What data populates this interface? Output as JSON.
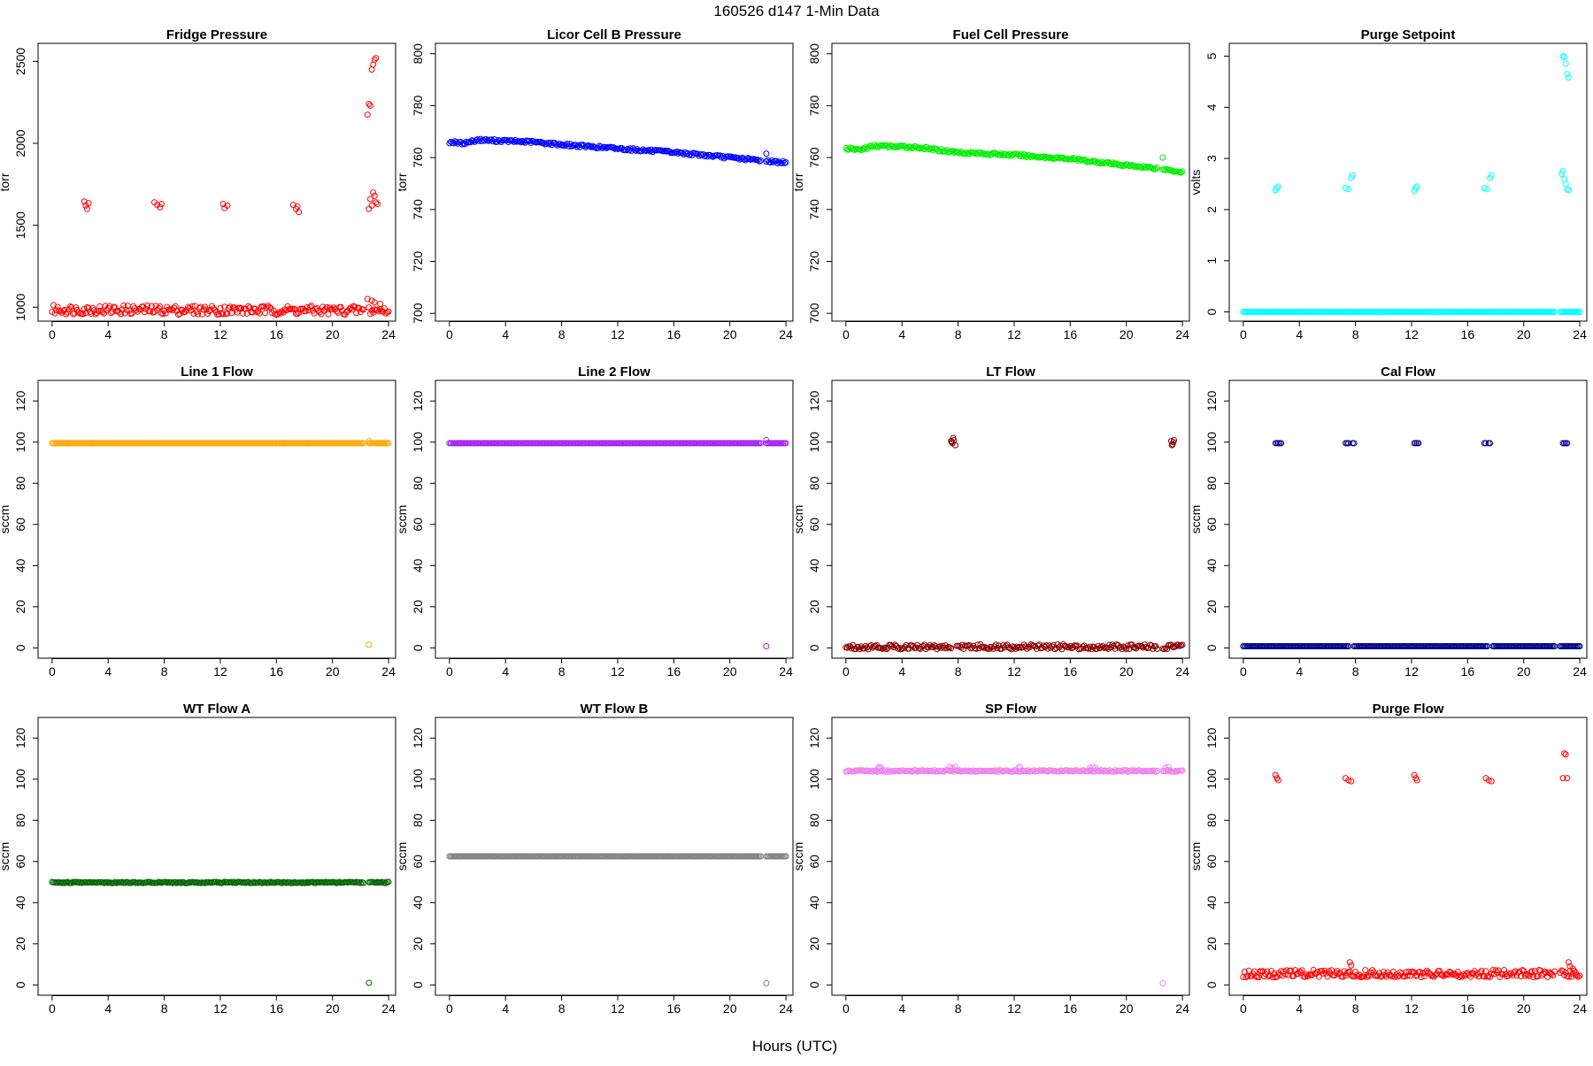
{
  "figure": {
    "title": "160526    d147    1-Min Data",
    "xlabel": "Hours (UTC)"
  },
  "chart_data": [
    {
      "type": "scatter",
      "title": "Fridge Pressure",
      "ylabel": "torr",
      "color": "#ff0000",
      "xlim": [
        -1,
        24.5
      ],
      "ylim": [
        915,
        2610
      ],
      "xticks": [
        0,
        4,
        8,
        12,
        16,
        20,
        24
      ],
      "yticks": [
        1000,
        1500,
        2000,
        2500
      ],
      "baseline": {
        "x_start": 0,
        "x_end": 24,
        "y_start": 985,
        "y_end": 980,
        "jitter": 28,
        "gaps": [
          [
            22.3,
            22.5
          ]
        ]
      },
      "points": [
        [
          2.3,
          1645
        ],
        [
          2.4,
          1620
        ],
        [
          2.5,
          1600
        ],
        [
          2.6,
          1635
        ],
        [
          7.3,
          1640
        ],
        [
          7.5,
          1625
        ],
        [
          7.7,
          1610
        ],
        [
          7.8,
          1630
        ],
        [
          12.2,
          1630
        ],
        [
          12.3,
          1605
        ],
        [
          12.5,
          1620
        ],
        [
          17.2,
          1625
        ],
        [
          17.4,
          1600
        ],
        [
          17.6,
          1580
        ],
        [
          17.5,
          1615
        ],
        [
          22.6,
          2240
        ],
        [
          22.7,
          2230
        ],
        [
          22.5,
          2175
        ],
        [
          22.8,
          2450
        ],
        [
          22.9,
          2480
        ],
        [
          23.0,
          2510
        ],
        [
          23.1,
          2520
        ],
        [
          22.9,
          1700
        ],
        [
          23.0,
          1680
        ],
        [
          22.7,
          1660
        ],
        [
          22.8,
          1620
        ],
        [
          23.1,
          1640
        ],
        [
          23.2,
          1630
        ],
        [
          22.6,
          1600
        ],
        [
          22.5,
          1050
        ],
        [
          22.8,
          1040
        ],
        [
          23.0,
          1030
        ],
        [
          23.4,
          1020
        ]
      ]
    },
    {
      "type": "scatter",
      "title": "Licor Cell B Pressure",
      "ylabel": "torr",
      "color": "#0000ff",
      "xlim": [
        -1,
        24.5
      ],
      "ylim": [
        697,
        804
      ],
      "xticks": [
        0,
        4,
        8,
        12,
        16,
        20,
        24
      ],
      "yticks": [
        700,
        720,
        740,
        760,
        780,
        800
      ],
      "trend": [
        [
          0,
          766
        ],
        [
          1,
          765.5
        ],
        [
          2,
          766.8
        ],
        [
          6,
          766
        ],
        [
          8,
          765
        ],
        [
          12,
          763.5
        ],
        [
          16,
          762
        ],
        [
          20,
          760
        ],
        [
          22,
          759
        ],
        [
          24,
          758
        ]
      ],
      "trend_jitter": 0.5,
      "baseline": {
        "gaps": [
          [
            22.3,
            22.5
          ]
        ]
      },
      "points": [
        [
          22.6,
          761.5
        ]
      ]
    },
    {
      "type": "scatter",
      "title": "Fuel Cell Pressure",
      "ylabel": "torr",
      "color": "#00ee00",
      "xlim": [
        -1,
        24.5
      ],
      "ylim": [
        697,
        804
      ],
      "xticks": [
        0,
        4,
        8,
        12,
        16,
        20,
        24
      ],
      "yticks": [
        700,
        720,
        740,
        760,
        780,
        800
      ],
      "trend": [
        [
          0,
          763.5
        ],
        [
          1,
          763
        ],
        [
          2,
          764.5
        ],
        [
          5,
          764
        ],
        [
          8,
          762
        ],
        [
          12,
          761
        ],
        [
          16,
          759.5
        ],
        [
          20,
          757
        ],
        [
          22,
          756
        ],
        [
          24,
          754.5
        ]
      ],
      "trend_jitter": 0.5,
      "baseline": {
        "gaps": [
          [
            22.3,
            22.5
          ]
        ]
      },
      "points": [
        [
          22.6,
          760
        ]
      ]
    },
    {
      "type": "scatter",
      "title": "Purge Setpoint",
      "ylabel": "volts",
      "color": "#00ffff",
      "xlim": [
        -1,
        24.5
      ],
      "ylim": [
        -0.18,
        5.25
      ],
      "xticks": [
        0,
        4,
        8,
        12,
        16,
        20,
        24
      ],
      "yticks": [
        0,
        1,
        2,
        3,
        4,
        5
      ],
      "baseline": {
        "x_start": 0,
        "x_end": 24,
        "y_start": 0,
        "y_end": 0,
        "jitter": 0,
        "gaps": [
          [
            22.3,
            22.5
          ]
        ]
      },
      "points": [
        [
          2.3,
          2.38
        ],
        [
          2.4,
          2.42
        ],
        [
          2.5,
          2.45
        ],
        [
          7.3,
          2.42
        ],
        [
          7.5,
          2.4
        ],
        [
          7.7,
          2.62
        ],
        [
          7.8,
          2.67
        ],
        [
          12.2,
          2.37
        ],
        [
          12.3,
          2.42
        ],
        [
          12.4,
          2.45
        ],
        [
          17.2,
          2.42
        ],
        [
          17.4,
          2.4
        ],
        [
          17.6,
          2.62
        ],
        [
          17.7,
          2.67
        ],
        [
          22.7,
          2.7
        ],
        [
          22.8,
          2.75
        ],
        [
          22.9,
          2.6
        ],
        [
          23.0,
          2.5
        ],
        [
          23.1,
          2.4
        ],
        [
          23.2,
          2.38
        ],
        [
          22.8,
          5.0
        ],
        [
          22.9,
          4.98
        ],
        [
          23.0,
          4.85
        ],
        [
          23.1,
          4.65
        ],
        [
          23.2,
          4.58
        ]
      ]
    },
    {
      "type": "scatter",
      "title": "Line 1 Flow",
      "ylabel": "sccm",
      "color": "#ffa500",
      "xlim": [
        -1,
        24.5
      ],
      "ylim": [
        -5,
        130
      ],
      "xticks": [
        0,
        4,
        8,
        12,
        16,
        20,
        24
      ],
      "yticks": [
        0,
        20,
        40,
        60,
        80,
        100,
        120
      ],
      "baseline": {
        "x_start": 0,
        "x_end": 24,
        "y_start": 99.5,
        "y_end": 99.5,
        "jitter": 0,
        "gaps": [
          [
            22.3,
            22.5
          ]
        ]
      },
      "points": [
        [
          22.6,
          1.5
        ],
        [
          22.6,
          100.5
        ]
      ]
    },
    {
      "type": "scatter",
      "title": "Line 2 Flow",
      "ylabel": "sccm",
      "color": "#a020f0",
      "xlim": [
        -1,
        24.5
      ],
      "ylim": [
        -5,
        130
      ],
      "xticks": [
        0,
        4,
        8,
        12,
        16,
        20,
        24
      ],
      "yticks": [
        0,
        20,
        40,
        60,
        80,
        100,
        120
      ],
      "baseline": {
        "x_start": 0,
        "x_end": 24,
        "y_start": 99.5,
        "y_end": 99.5,
        "jitter": 0,
        "gaps": [
          [
            22.3,
            22.5
          ]
        ]
      },
      "points": [
        [
          22.6,
          0.8
        ],
        [
          22.6,
          101
        ]
      ]
    },
    {
      "type": "scatter",
      "title": "LT Flow",
      "ylabel": "sccm",
      "color": "#8b0000",
      "xlim": [
        -1,
        24.5
      ],
      "ylim": [
        -5,
        130
      ],
      "xticks": [
        0,
        4,
        8,
        12,
        16,
        20,
        24
      ],
      "yticks": [
        0,
        20,
        40,
        60,
        80,
        100,
        120
      ],
      "baseline": {
        "x_start": 0,
        "x_end": 24,
        "y_start": 0.5,
        "y_end": 0.5,
        "jitter": 1.2,
        "gaps": [
          [
            7.6,
            7.8
          ],
          [
            22.3,
            22.5
          ]
        ]
      },
      "points": [
        [
          7.5,
          100.5
        ],
        [
          7.6,
          99.5
        ],
        [
          7.7,
          101
        ],
        [
          7.8,
          98.5
        ],
        [
          7.55,
          100
        ],
        [
          7.65,
          102
        ],
        [
          23.2,
          100.5
        ],
        [
          23.3,
          99
        ],
        [
          23.4,
          101
        ],
        [
          23.25,
          98.5
        ],
        [
          23.35,
          100
        ]
      ]
    },
    {
      "type": "scatter",
      "title": "Cal Flow",
      "ylabel": "sccm",
      "color": "#00008b",
      "xlim": [
        -1,
        24.5
      ],
      "ylim": [
        -5,
        130
      ],
      "xticks": [
        0,
        4,
        8,
        12,
        16,
        20,
        24
      ],
      "yticks": [
        0,
        20,
        40,
        60,
        80,
        100,
        120
      ],
      "baseline": {
        "x_start": 0,
        "x_end": 24,
        "y_start": 0.8,
        "y_end": 0.8,
        "jitter": 0,
        "gaps": [
          [
            7.6,
            7.8
          ],
          [
            17.5,
            17.7
          ],
          [
            22.3,
            22.5
          ]
        ]
      },
      "points": [
        [
          2.3,
          99.5
        ],
        [
          2.4,
          99.5
        ],
        [
          2.5,
          99.5
        ],
        [
          2.6,
          99.5
        ],
        [
          2.7,
          99.5
        ],
        [
          7.3,
          99.5
        ],
        [
          7.4,
          99.5
        ],
        [
          7.5,
          99.5
        ],
        [
          7.8,
          99.5
        ],
        [
          7.9,
          99.5
        ],
        [
          12.2,
          99.5
        ],
        [
          12.3,
          99.5
        ],
        [
          12.4,
          99.5
        ],
        [
          12.5,
          99.5
        ],
        [
          17.2,
          99.5
        ],
        [
          17.3,
          99.5
        ],
        [
          17.5,
          99.5
        ],
        [
          17.6,
          99.5
        ],
        [
          22.8,
          99.5
        ],
        [
          22.9,
          99.5
        ],
        [
          23.0,
          99.5
        ],
        [
          23.1,
          99.5
        ]
      ]
    },
    {
      "type": "scatter",
      "title": "WT Flow A",
      "ylabel": "sccm",
      "color": "#006400",
      "xlim": [
        -1,
        24.5
      ],
      "ylim": [
        -5,
        130
      ],
      "xticks": [
        0,
        4,
        8,
        12,
        16,
        20,
        24
      ],
      "yticks": [
        0,
        20,
        40,
        60,
        80,
        100,
        120
      ],
      "baseline": {
        "x_start": 0,
        "x_end": 24,
        "y_start": 49.8,
        "y_end": 49.8,
        "jitter": 0.3,
        "gaps": [
          [
            22.3,
            22.5
          ]
        ]
      },
      "points": [
        [
          22.6,
          1
        ]
      ]
    },
    {
      "type": "scatter",
      "title": "WT Flow B",
      "ylabel": "sccm",
      "color": "#808080",
      "xlim": [
        -1,
        24.5
      ],
      "ylim": [
        -5,
        130
      ],
      "xticks": [
        0,
        4,
        8,
        12,
        16,
        20,
        24
      ],
      "yticks": [
        0,
        20,
        40,
        60,
        80,
        100,
        120
      ],
      "baseline": {
        "x_start": 0,
        "x_end": 24,
        "y_start": 62.5,
        "y_end": 62.5,
        "jitter": 0,
        "gaps": [
          [
            22.3,
            22.5
          ]
        ]
      },
      "points": [
        [
          22.6,
          0.8
        ]
      ]
    },
    {
      "type": "scatter",
      "title": "SP Flow",
      "ylabel": "sccm",
      "color": "#ee82ee",
      "xlim": [
        -1,
        24.5
      ],
      "ylim": [
        -5,
        130
      ],
      "xticks": [
        0,
        4,
        8,
        12,
        16,
        20,
        24
      ],
      "yticks": [
        0,
        20,
        40,
        60,
        80,
        100,
        120
      ],
      "baseline": {
        "x_start": 0,
        "x_end": 24,
        "y_start": 104,
        "y_end": 104,
        "jitter": 0.4,
        "gaps": [
          [
            22.3,
            22.5
          ]
        ]
      },
      "points": [
        [
          2.3,
          105.5
        ],
        [
          2.4,
          106
        ],
        [
          2.5,
          105.5
        ],
        [
          7.4,
          106
        ],
        [
          7.6,
          105.5
        ],
        [
          7.8,
          106
        ],
        [
          12.3,
          105.5
        ],
        [
          12.4,
          106
        ],
        [
          17.4,
          105.5
        ],
        [
          17.6,
          106
        ],
        [
          17.8,
          105.5
        ],
        [
          22.8,
          105.5
        ],
        [
          23.0,
          106
        ],
        [
          22.6,
          0.8
        ]
      ]
    },
    {
      "type": "scatter",
      "title": "Purge Flow",
      "ylabel": "sccm",
      "color": "#ff0000",
      "xlim": [
        -1,
        24.5
      ],
      "ylim": [
        -5,
        130
      ],
      "xticks": [
        0,
        4,
        8,
        12,
        16,
        20,
        24
      ],
      "yticks": [
        0,
        20,
        40,
        60,
        80,
        100,
        120
      ],
      "baseline": {
        "x_start": 0,
        "x_end": 24,
        "y_start": 5.5,
        "y_end": 5.5,
        "jitter": 1.8,
        "gaps": [
          [
            22.3,
            22.5
          ]
        ]
      },
      "points": [
        [
          2.3,
          102
        ],
        [
          2.4,
          100.5
        ],
        [
          2.5,
          99.5
        ],
        [
          7.3,
          100.5
        ],
        [
          7.5,
          99.5
        ],
        [
          7.7,
          99
        ],
        [
          12.2,
          102
        ],
        [
          12.3,
          100.5
        ],
        [
          12.4,
          99.5
        ],
        [
          17.3,
          100.5
        ],
        [
          17.5,
          99.5
        ],
        [
          17.7,
          99
        ],
        [
          22.8,
          100.5
        ],
        [
          22.9,
          112.5
        ],
        [
          23.0,
          112
        ],
        [
          23.1,
          100.5
        ],
        [
          7.6,
          11
        ],
        [
          7.7,
          9.5
        ],
        [
          23.2,
          11
        ],
        [
          23.3,
          9
        ],
        [
          23.5,
          8
        ],
        [
          23.7,
          6
        ]
      ]
    }
  ]
}
